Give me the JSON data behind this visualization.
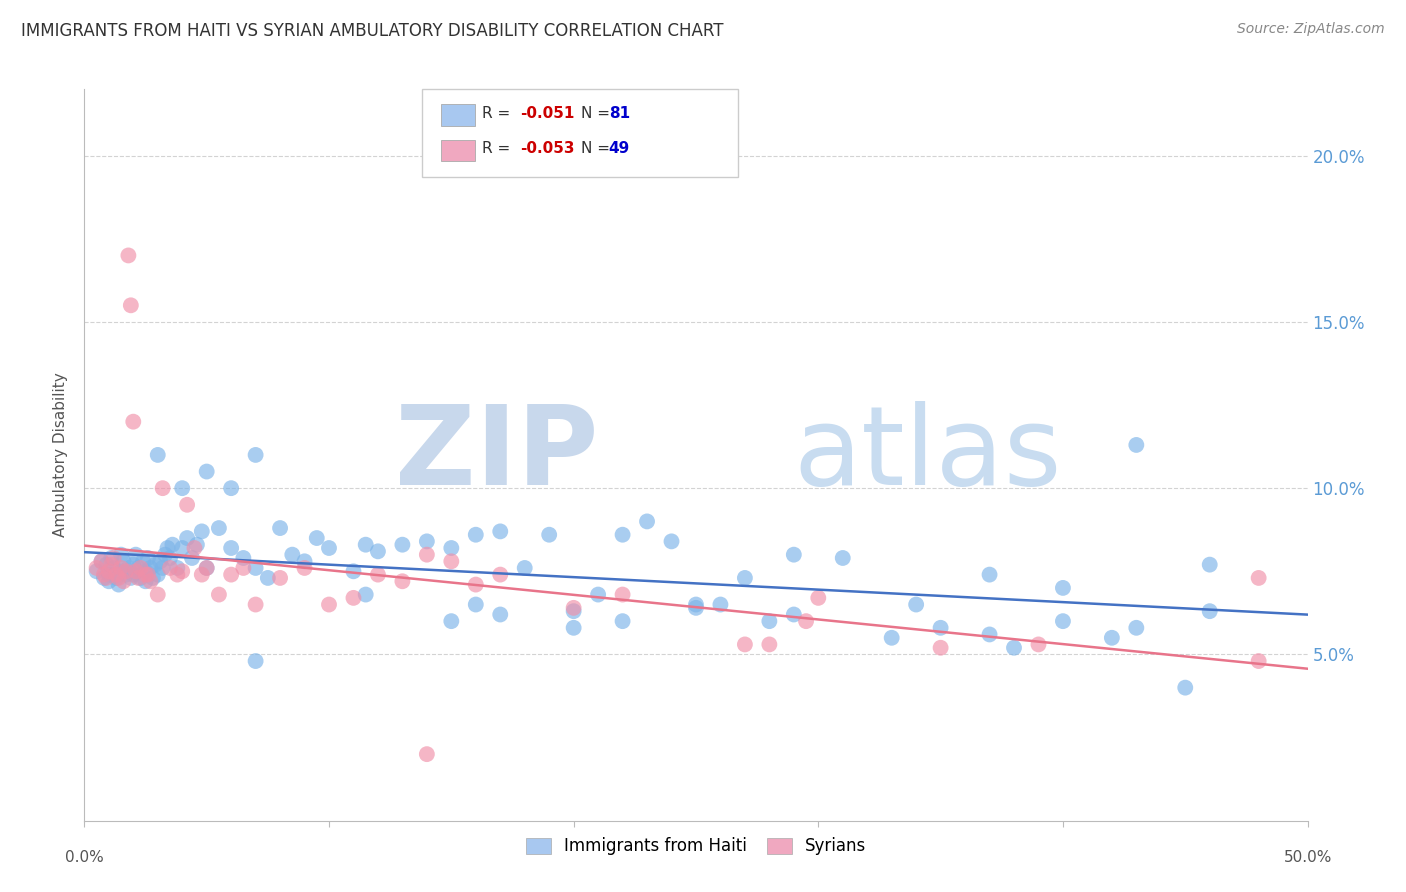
{
  "title": "IMMIGRANTS FROM HAITI VS SYRIAN AMBULATORY DISABILITY CORRELATION CHART",
  "source": "Source: ZipAtlas.com",
  "ylabel": "Ambulatory Disability",
  "xlim": [
    0.0,
    0.5
  ],
  "ylim": [
    0.0,
    0.22
  ],
  "yticks": [
    0.05,
    0.1,
    0.15,
    0.2
  ],
  "ytick_labels": [
    "5.0%",
    "10.0%",
    "15.0%",
    "20.0%"
  ],
  "watermark": "ZIPatlas",
  "legend_entries": [
    {
      "label": "Immigrants from Haiti",
      "color": "#a8c8f0",
      "R": "-0.051",
      "N": "81"
    },
    {
      "label": "Syrians",
      "color": "#f0a8c0",
      "R": "-0.053",
      "N": "49"
    }
  ],
  "haiti_x": [
    0.005,
    0.007,
    0.008,
    0.009,
    0.01,
    0.01,
    0.011,
    0.012,
    0.013,
    0.014,
    0.015,
    0.015,
    0.016,
    0.017,
    0.018,
    0.019,
    0.02,
    0.02,
    0.021,
    0.022,
    0.023,
    0.024,
    0.025,
    0.025,
    0.026,
    0.027,
    0.028,
    0.029,
    0.03,
    0.031,
    0.032,
    0.033,
    0.034,
    0.035,
    0.036,
    0.038,
    0.04,
    0.042,
    0.044,
    0.046,
    0.048,
    0.05,
    0.055,
    0.06,
    0.065,
    0.07,
    0.075,
    0.08,
    0.085,
    0.09,
    0.095,
    0.1,
    0.11,
    0.115,
    0.12,
    0.13,
    0.14,
    0.15,
    0.16,
    0.17,
    0.18,
    0.19,
    0.2,
    0.21,
    0.22,
    0.23,
    0.24,
    0.25,
    0.27,
    0.29,
    0.31,
    0.34,
    0.37,
    0.4,
    0.43,
    0.46,
    0.03,
    0.04,
    0.05,
    0.06,
    0.07
  ],
  "haiti_y": [
    0.075,
    0.078,
    0.073,
    0.077,
    0.074,
    0.072,
    0.079,
    0.076,
    0.073,
    0.071,
    0.08,
    0.075,
    0.078,
    0.074,
    0.076,
    0.073,
    0.077,
    0.074,
    0.08,
    0.076,
    0.073,
    0.078,
    0.075,
    0.072,
    0.079,
    0.076,
    0.073,
    0.077,
    0.074,
    0.078,
    0.076,
    0.08,
    0.082,
    0.079,
    0.083,
    0.076,
    0.082,
    0.085,
    0.079,
    0.083,
    0.087,
    0.076,
    0.088,
    0.082,
    0.079,
    0.076,
    0.073,
    0.088,
    0.08,
    0.078,
    0.085,
    0.082,
    0.075,
    0.083,
    0.081,
    0.083,
    0.084,
    0.082,
    0.086,
    0.087,
    0.076,
    0.086,
    0.063,
    0.068,
    0.086,
    0.09,
    0.084,
    0.064,
    0.073,
    0.08,
    0.079,
    0.065,
    0.074,
    0.07,
    0.113,
    0.077,
    0.11,
    0.1,
    0.105,
    0.1,
    0.11
  ],
  "haiti_y_special": [
    0.048,
    0.068,
    0.06,
    0.065,
    0.062,
    0.058,
    0.06,
    0.065,
    0.062,
    0.056,
    0.06,
    0.058,
    0.063,
    0.055,
    0.058,
    0.06,
    0.065,
    0.04,
    0.055,
    0.052
  ],
  "haiti_x_special": [
    0.07,
    0.115,
    0.15,
    0.16,
    0.17,
    0.2,
    0.22,
    0.25,
    0.29,
    0.37,
    0.4,
    0.43,
    0.46,
    0.33,
    0.35,
    0.28,
    0.26,
    0.45,
    0.42,
    0.38
  ],
  "syrian_x": [
    0.005,
    0.007,
    0.008,
    0.009,
    0.01,
    0.011,
    0.012,
    0.013,
    0.015,
    0.016,
    0.017,
    0.018,
    0.019,
    0.02,
    0.021,
    0.022,
    0.023,
    0.025,
    0.027,
    0.03,
    0.032,
    0.035,
    0.038,
    0.04,
    0.042,
    0.045,
    0.048,
    0.05,
    0.055,
    0.06,
    0.065,
    0.07,
    0.08,
    0.09,
    0.1,
    0.11,
    0.12,
    0.13,
    0.14,
    0.15,
    0.16,
    0.17,
    0.2,
    0.22,
    0.28,
    0.3,
    0.48,
    0.014,
    0.026
  ],
  "syrian_y": [
    0.076,
    0.078,
    0.074,
    0.073,
    0.075,
    0.077,
    0.079,
    0.074,
    0.076,
    0.072,
    0.075,
    0.17,
    0.155,
    0.12,
    0.075,
    0.073,
    0.076,
    0.074,
    0.072,
    0.068,
    0.1,
    0.076,
    0.074,
    0.075,
    0.095,
    0.082,
    0.074,
    0.076,
    0.068,
    0.074,
    0.076,
    0.065,
    0.073,
    0.076,
    0.065,
    0.067,
    0.074,
    0.072,
    0.08,
    0.078,
    0.071,
    0.074,
    0.064,
    0.068,
    0.053,
    0.067,
    0.073,
    0.073,
    0.074
  ],
  "syrian_y_special": [
    0.052,
    0.06,
    0.053,
    0.048,
    0.053,
    0.02
  ],
  "syrian_x_special": [
    0.35,
    0.295,
    0.39,
    0.48,
    0.27,
    0.14
  ],
  "haiti_color": "#7bb3e8",
  "syrian_color": "#f08fa8",
  "haiti_trendline_color": "#4472c4",
  "syrian_trendline_color": "#e8748a",
  "background_color": "#ffffff",
  "grid_color": "#d3d3d3",
  "title_color": "#333333",
  "axis_label_color": "#555555",
  "right_axis_color": "#5b9bd5",
  "watermark_color": "#dce8f5"
}
